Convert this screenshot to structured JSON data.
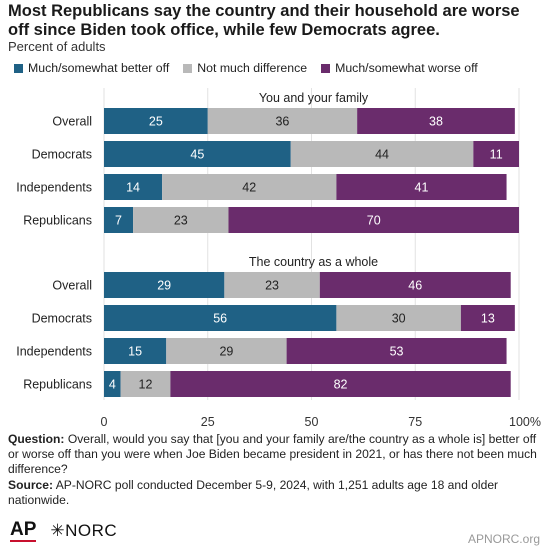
{
  "header": {
    "title": "Most Republicans say the country and their household are worse off since Biden took office, while few Democrats agree.",
    "subtitle": "Percent of adults"
  },
  "legend": [
    {
      "label": "Much/somewhat better off",
      "color": "#1f6185"
    },
    {
      "label": "Not much difference",
      "color": "#b9b9b9"
    },
    {
      "label": "Much/somewhat worse off",
      "color": "#6a2c6c"
    }
  ],
  "chart_data": {
    "type": "bar",
    "orientation": "horizontal",
    "stacked": true,
    "xlim": [
      0,
      100
    ],
    "xticks": [
      "0",
      "25",
      "50",
      "75",
      "100%"
    ],
    "grid": true,
    "legend_position": "top",
    "panels": [
      {
        "title": "You and your family",
        "categories": [
          "Overall",
          "Democrats",
          "Independents",
          "Republicans"
        ],
        "series": [
          {
            "name": "Much/somewhat better off",
            "values": [
              25,
              45,
              14,
              7
            ]
          },
          {
            "name": "Not much difference",
            "values": [
              36,
              44,
              42,
              23
            ]
          },
          {
            "name": "Much/somewhat worse off",
            "values": [
              38,
              11,
              41,
              70
            ]
          }
        ]
      },
      {
        "title": "The country as a whole",
        "categories": [
          "Overall",
          "Democrats",
          "Independents",
          "Republicans"
        ],
        "series": [
          {
            "name": "Much/somewhat better off",
            "values": [
              29,
              56,
              15,
              4
            ]
          },
          {
            "name": "Not much difference",
            "values": [
              23,
              30,
              29,
              12
            ]
          },
          {
            "name": "Much/somewhat worse off",
            "values": [
              46,
              13,
              53,
              82
            ]
          }
        ]
      }
    ]
  },
  "notes": {
    "question_label": "Question:",
    "question_text": "Overall, would you say that [you and your family are/the country as a whole is] better off or worse off than you were when Joe Biden became president in 2021, or has there not been much difference?",
    "source_label": "Source:",
    "source_text": "AP-NORC poll conducted December 5-9, 2024, with 1,251 adults age 18 and older nationwide."
  },
  "footer": {
    "ap_logo_text": "AP",
    "norc_logo_text": "✳NORC",
    "url": "APNORC.org"
  }
}
